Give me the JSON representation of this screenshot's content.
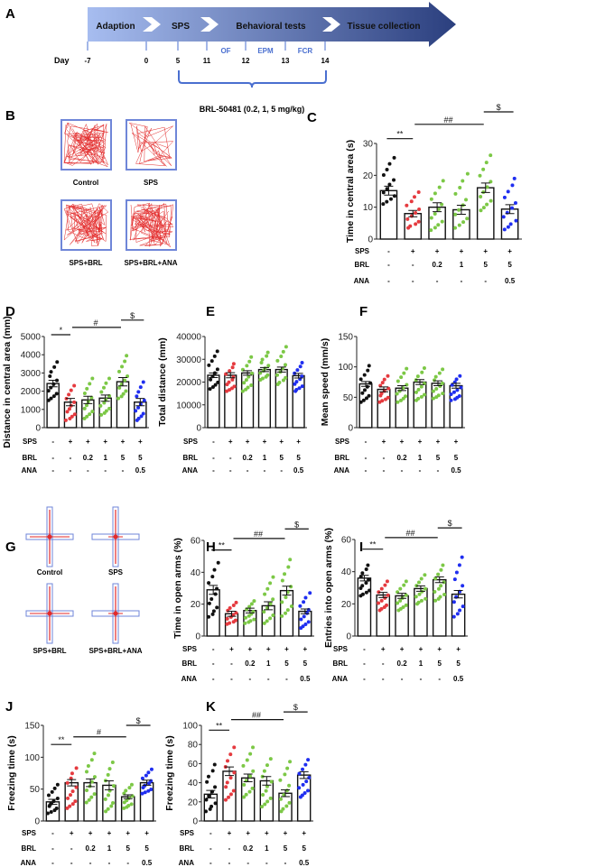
{
  "panel_letters": [
    "A",
    "B",
    "C",
    "D",
    "E",
    "F",
    "G",
    "H",
    "I",
    "J",
    "K"
  ],
  "timeline": {
    "phases": [
      "Adaption",
      "SPS",
      "Behavioral tests",
      "Tissue collection"
    ],
    "day_label": "Day",
    "days": [
      "-7",
      "0",
      "5",
      "11",
      "12",
      "13",
      "14"
    ],
    "tests": [
      "OF",
      "EPM",
      "FCR"
    ],
    "treatment": "BRL-50481 (0.2, 1, 5 mg/kg)",
    "colors": {
      "start": "#a7bdf0",
      "end": "#2b3f7e",
      "test_text": "#4a6fd0"
    }
  },
  "open_field_tracks": [
    "Control",
    "SPS",
    "SPS+BRL",
    "SPS+BRL+ANA"
  ],
  "epm_tracks": [
    "Control",
    "SPS",
    "SPS+BRL",
    "SPS+BRL+ANA"
  ],
  "conditions": {
    "row_labels": [
      "SPS",
      "BRL",
      "ANA"
    ],
    "SPS": [
      "-",
      "+",
      "+",
      "+",
      "+",
      "+"
    ],
    "BRL": [
      "-",
      "-",
      "0.2",
      "1",
      "5",
      "5"
    ],
    "ANA": [
      "-",
      "-",
      "-",
      "-",
      "-",
      "0.5"
    ]
  },
  "group_colors": [
    "#111111",
    "#e53a3f",
    "#7cc846",
    "#7cc846",
    "#7cc846",
    "#1f2ef0"
  ],
  "chart_data": [
    {
      "id": "C",
      "type": "bar",
      "ylabel": "Time in central area (s)",
      "ylim": [
        0,
        30
      ],
      "yticks": [
        "0",
        "10",
        "20",
        "30"
      ],
      "values": [
        15.2,
        8.0,
        10.0,
        9.2,
        16.1,
        9.4
      ],
      "sem": [
        1.4,
        1.0,
        1.4,
        1.4,
        1.5,
        1.4
      ],
      "point_range": [
        [
          11,
          25.5
        ],
        [
          3.5,
          14.7
        ],
        [
          2.8,
          18.3
        ],
        [
          3.5,
          20.5
        ],
        [
          9,
          26.3
        ],
        [
          3,
          19
        ]
      ],
      "significance": [
        {
          "from": 0,
          "to": 1,
          "label": "**"
        },
        {
          "from": 1,
          "to": 4,
          "label": "##"
        },
        {
          "from": 4,
          "to": 5,
          "label": "$"
        }
      ]
    },
    {
      "id": "D",
      "type": "bar",
      "ylabel": "Distance in central area (mm)",
      "ylim": [
        0,
        5000
      ],
      "yticks": [
        "0",
        "1000",
        "2000",
        "3000",
        "4000",
        "5000"
      ],
      "values": [
        2420,
        1400,
        1520,
        1620,
        2520,
        1400
      ],
      "sem": [
        180,
        200,
        200,
        170,
        230,
        200
      ],
      "point_range": [
        [
          1500,
          3600
        ],
        [
          400,
          2300
        ],
        [
          500,
          2700
        ],
        [
          700,
          2700
        ],
        [
          1600,
          3950
        ],
        [
          400,
          2500
        ]
      ],
      "significance": [
        {
          "from": 0,
          "to": 1,
          "label": "*"
        },
        {
          "from": 1,
          "to": 4,
          "label": "#"
        },
        {
          "from": 4,
          "to": 5,
          "label": "$"
        }
      ]
    },
    {
      "id": "E",
      "type": "bar",
      "ylabel": "Total distance (mm)",
      "ylim": [
        0,
        40000
      ],
      "yticks": [
        "0",
        "10000",
        "20000",
        "30000",
        "40000"
      ],
      "values": [
        23000,
        23000,
        24000,
        25500,
        25500,
        22800
      ],
      "sem": [
        1000,
        1100,
        1000,
        900,
        1100,
        1000
      ],
      "point_range": [
        [
          17000,
          33500
        ],
        [
          16000,
          28000
        ],
        [
          16000,
          31000
        ],
        [
          21000,
          33000
        ],
        [
          19000,
          35500
        ],
        [
          16000,
          28500
        ]
      ],
      "significance": []
    },
    {
      "id": "F",
      "type": "bar",
      "ylabel": "Mean speed (mm/s)",
      "ylim": [
        0,
        150
      ],
      "yticks": [
        "0",
        "50",
        "100",
        "150"
      ],
      "values": [
        72,
        63,
        65,
        75,
        73,
        69
      ],
      "sem": [
        4,
        4,
        4,
        4,
        4,
        4
      ],
      "point_range": [
        [
          42,
          102
        ],
        [
          42,
          85
        ],
        [
          42,
          97
        ],
        [
          45,
          98
        ],
        [
          48,
          96
        ],
        [
          45,
          85
        ]
      ],
      "significance": []
    },
    {
      "id": "H",
      "type": "bar",
      "ylabel": "Time in open arms (%)",
      "ylim": [
        0,
        60
      ],
      "yticks": [
        "0",
        "20",
        "40",
        "60"
      ],
      "values": [
        29,
        14,
        16,
        19,
        28.5,
        15.5
      ],
      "sem": [
        2.8,
        1.6,
        1.5,
        2.5,
        2.8,
        1.5
      ],
      "point_range": [
        [
          12,
          46
        ],
        [
          7.5,
          21
        ],
        [
          8,
          22
        ],
        [
          8,
          37
        ],
        [
          12.5,
          48
        ],
        [
          5,
          27
        ]
      ],
      "significance": [
        {
          "from": 0,
          "to": 1,
          "label": "**"
        },
        {
          "from": 1,
          "to": 4,
          "label": "##"
        },
        {
          "from": 4,
          "to": 5,
          "label": "$"
        }
      ]
    },
    {
      "id": "I",
      "type": "bar",
      "ylabel": "Entries into open arms (%)",
      "ylim": [
        0,
        60
      ],
      "yticks": [
        "0",
        "20",
        "40",
        "60"
      ],
      "values": [
        36,
        25.5,
        25,
        29.5,
        35,
        26
      ],
      "sem": [
        1.7,
        1.6,
        1.6,
        1.7,
        1.8,
        2.3
      ],
      "point_range": [
        [
          25,
          44
        ],
        [
          16,
          34
        ],
        [
          16,
          34
        ],
        [
          20,
          38
        ],
        [
          22,
          44
        ],
        [
          12,
          49
        ]
      ],
      "significance": [
        {
          "from": 0,
          "to": 1,
          "label": "**"
        },
        {
          "from": 1,
          "to": 4,
          "label": "##"
        },
        {
          "from": 4,
          "to": 5,
          "label": "$"
        }
      ]
    },
    {
      "id": "J",
      "type": "bar",
      "ylabel": "Freezing time (s)",
      "ylim": [
        0,
        150
      ],
      "yticks": [
        "0",
        "50",
        "100",
        "150"
      ],
      "values": [
        30,
        60,
        60,
        56,
        38,
        60
      ],
      "sem": [
        4,
        5,
        6,
        7,
        3,
        4
      ],
      "point_range": [
        [
          12,
          57
        ],
        [
          20,
          83
        ],
        [
          29,
          106
        ],
        [
          15,
          92
        ],
        [
          20,
          57
        ],
        [
          43,
          81
        ]
      ],
      "significance": [
        {
          "from": 0,
          "to": 1,
          "label": "**"
        },
        {
          "from": 1,
          "to": 4,
          "label": "#"
        },
        {
          "from": 4,
          "to": 5,
          "label": "$"
        }
      ]
    },
    {
      "id": "K",
      "type": "bar",
      "ylabel": "Freezing time (s)",
      "ylim": [
        0,
        100
      ],
      "yticks": [
        "0",
        "20",
        "40",
        "60",
        "80",
        "100"
      ],
      "values": [
        28,
        52,
        45,
        42,
        29,
        48
      ],
      "sem": [
        4,
        4.5,
        4,
        4.5,
        3.5,
        3.5
      ],
      "point_range": [
        [
          10,
          59
        ],
        [
          22,
          77
        ],
        [
          25,
          77
        ],
        [
          15,
          65
        ],
        [
          10,
          62
        ],
        [
          25,
          64
        ]
      ],
      "significance": [
        {
          "from": 0,
          "to": 1,
          "label": "**"
        },
        {
          "from": 1,
          "to": 4,
          "label": "##"
        },
        {
          "from": 4,
          "to": 5,
          "label": "$"
        }
      ]
    }
  ]
}
